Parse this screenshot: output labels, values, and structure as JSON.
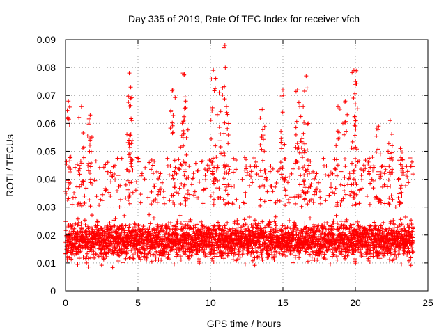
{
  "chart_data": {
    "type": "scatter",
    "title": "Day 335 of 2019, Rate Of TEC Index for receiver vfch",
    "xlabel": "GPS time / hours",
    "ylabel": "ROTI / TECUs",
    "xlim": [
      0,
      25
    ],
    "ylim": [
      0,
      0.09
    ],
    "x_ticks": [
      "0",
      "5",
      "10",
      "15",
      "20",
      "25"
    ],
    "y_ticks": [
      "0",
      "0.01",
      "0.02",
      "0.03",
      "0.04",
      "0.05",
      "0.06",
      "0.07",
      "0.08",
      "0.09"
    ],
    "grid": true,
    "marker": "+",
    "color": "#ff0000",
    "series": [
      {
        "name": "ROTI",
        "x_range": [
          0,
          24
        ],
        "sampling_interval_hours": 0.0083,
        "typical_band": [
          0.01,
          0.03
        ],
        "median": 0.018,
        "spikes": [
          {
            "x": 0.2,
            "y": 0.068
          },
          {
            "x": 1.1,
            "y": 0.066
          },
          {
            "x": 1.7,
            "y": 0.063
          },
          {
            "x": 4.4,
            "y": 0.078
          },
          {
            "x": 4.5,
            "y": 0.073
          },
          {
            "x": 4.5,
            "y": 0.069
          },
          {
            "x": 7.4,
            "y": 0.072
          },
          {
            "x": 8.1,
            "y": 0.078
          },
          {
            "x": 8.3,
            "y": 0.068
          },
          {
            "x": 10.2,
            "y": 0.079
          },
          {
            "x": 10.6,
            "y": 0.071
          },
          {
            "x": 11.0,
            "y": 0.088
          },
          {
            "x": 11.1,
            "y": 0.066
          },
          {
            "x": 13.6,
            "y": 0.065
          },
          {
            "x": 15.0,
            "y": 0.072
          },
          {
            "x": 16.0,
            "y": 0.072
          },
          {
            "x": 16.6,
            "y": 0.077
          },
          {
            "x": 16.4,
            "y": 0.066
          },
          {
            "x": 18.8,
            "y": 0.066
          },
          {
            "x": 19.3,
            "y": 0.068
          },
          {
            "x": 19.9,
            "y": 0.079
          },
          {
            "x": 20.0,
            "y": 0.074
          },
          {
            "x": 20.0,
            "y": 0.067
          },
          {
            "x": 21.6,
            "y": 0.059
          },
          {
            "x": 22.4,
            "y": 0.061
          },
          {
            "x": 23.1,
            "y": 0.051
          }
        ]
      }
    ]
  }
}
